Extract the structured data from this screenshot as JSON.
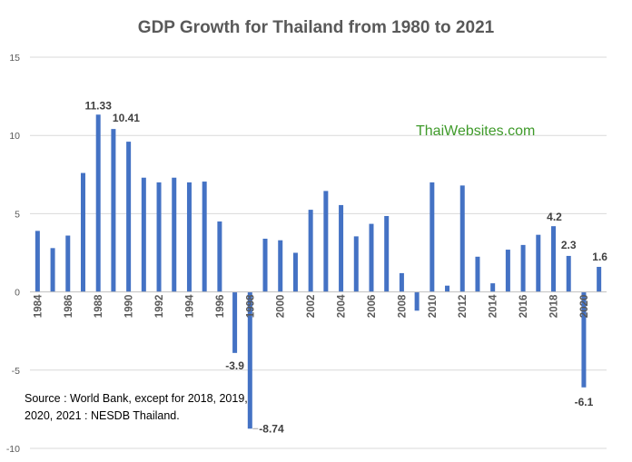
{
  "chart_data": {
    "type": "bar",
    "title": "GDP Growth for Thailand from 1980 to 2021",
    "xlabel": "",
    "ylabel": "",
    "ylim": [
      -10,
      15
    ],
    "yticks": [
      -10,
      -5,
      0,
      5,
      10,
      15
    ],
    "grid": true,
    "legend": "none",
    "bar_color": "#4472c4",
    "categories": [
      1984,
      1985,
      1986,
      1987,
      1988,
      1989,
      1990,
      1991,
      1992,
      1993,
      1994,
      1995,
      1996,
      1997,
      1998,
      1999,
      2000,
      2001,
      2002,
      2003,
      2004,
      2005,
      2006,
      2007,
      2008,
      2009,
      2010,
      2011,
      2012,
      2013,
      2014,
      2015,
      2016,
      2017,
      2018,
      2019,
      2020,
      2021
    ],
    "xtick_labels": [
      "1984",
      "1986",
      "1988",
      "1990",
      "1992",
      "1994",
      "1996",
      "1998",
      "2000",
      "2002",
      "2004",
      "2006",
      "2008",
      "2010",
      "2012",
      "2014",
      "2016",
      "2018",
      "2020"
    ],
    "values": [
      3.9,
      2.8,
      3.6,
      7.6,
      11.33,
      10.41,
      9.6,
      7.3,
      7.0,
      7.3,
      7.0,
      7.05,
      4.5,
      -3.9,
      -8.74,
      3.4,
      3.3,
      2.5,
      5.25,
      6.45,
      5.55,
      3.55,
      4.35,
      4.85,
      1.2,
      -1.2,
      7.0,
      0.4,
      6.8,
      2.25,
      0.55,
      2.7,
      3.0,
      3.65,
      4.2,
      2.3,
      -6.1,
      1.6
    ],
    "data_labels": [
      {
        "year": 1988,
        "text": "11.33"
      },
      {
        "year": 1989,
        "text": "10.41"
      },
      {
        "year": 1997,
        "text": "-3.9"
      },
      {
        "year": 1998,
        "text": "-8.74"
      },
      {
        "year": 2018,
        "text": "4.2"
      },
      {
        "year": 2019,
        "text": "2.3"
      },
      {
        "year": 2020,
        "text": "-6.1"
      },
      {
        "year": 2021,
        "text": "1.6"
      }
    ]
  },
  "watermark": "ThaiWebsites.com",
  "source_line1": "Source : World Bank, except for 2018, 2019,",
  "source_line2": "2020,  2021  : NESDB Thailand."
}
